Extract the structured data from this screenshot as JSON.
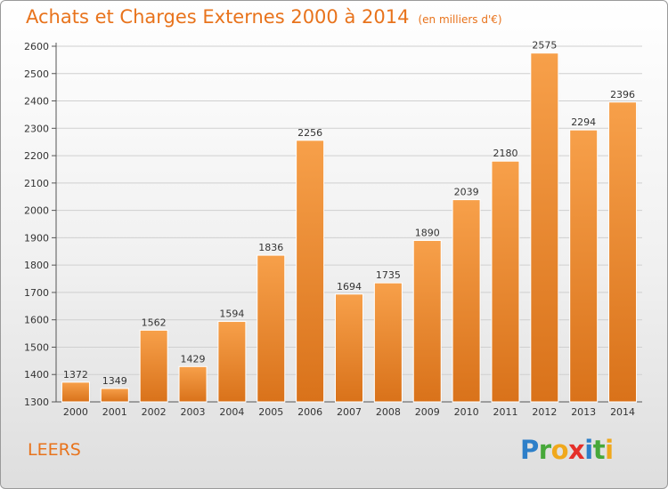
{
  "title": "Achats et Charges Externes 2000 à 2014",
  "unit": "(en milliers d'€)",
  "commune": "LEERS",
  "logo": {
    "text": "Proxiti",
    "letters": [
      {
        "ch": "P",
        "color": "#2d7fc9"
      },
      {
        "ch": "r",
        "color": "#47a83a"
      },
      {
        "ch": "o",
        "color": "#f0a81c"
      },
      {
        "ch": "x",
        "color": "#e5302a"
      },
      {
        "ch": "i",
        "color": "#2d7fc9"
      },
      {
        "ch": "t",
        "color": "#47a83a"
      },
      {
        "ch": "i",
        "color": "#f0a81c"
      }
    ]
  },
  "colors": {
    "accent": "#e8731c",
    "bar_top": "#f7a04a",
    "bar_bottom": "#d9721a",
    "grid": "#cfcfcf"
  },
  "chart_data": {
    "type": "bar",
    "categories": [
      "2000",
      "2001",
      "2002",
      "2003",
      "2004",
      "2005",
      "2006",
      "2007",
      "2008",
      "2009",
      "2010",
      "2011",
      "2012",
      "2013",
      "2014"
    ],
    "values": [
      1372,
      1349,
      1562,
      1429,
      1594,
      1836,
      2256,
      1694,
      1735,
      1890,
      2039,
      2180,
      2575,
      2294,
      2396
    ],
    "ylim": [
      1300,
      2600
    ],
    "yticks": [
      1300,
      1400,
      1500,
      1600,
      1700,
      1800,
      1900,
      2000,
      2100,
      2200,
      2300,
      2400,
      2500,
      2600
    ],
    "grid": true,
    "data_labels": true
  }
}
